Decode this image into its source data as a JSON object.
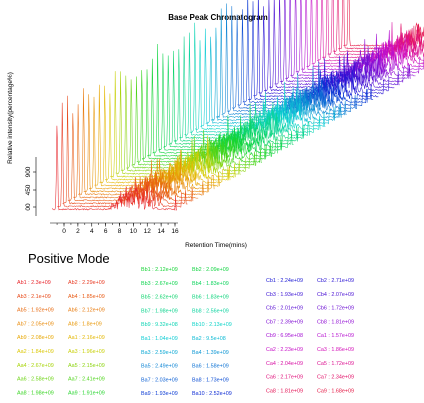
{
  "chart_data": {
    "type": "line",
    "title": "Base Peak Chromatogram",
    "xlabel": "Retention Time(mins)",
    "ylabel": "Relative intensity(percentage%)",
    "x_ticks": [
      "0",
      "2",
      "4",
      "6",
      "8",
      "10",
      "12",
      "14",
      "16"
    ],
    "xlim": [
      0,
      16
    ],
    "y_ticks": [
      "00",
      "450",
      "900"
    ],
    "mode_label": "Positive Mode",
    "series": [
      {
        "name": "Ab1",
        "value": "2.3e+09",
        "color": "#e8262c"
      },
      {
        "name": "Ab2",
        "value": "2.29e+09",
        "color": "#e83a22"
      },
      {
        "name": "Ab3",
        "value": "2.1e+09",
        "color": "#e84a1a"
      },
      {
        "name": "Ab4",
        "value": "1.85e+09",
        "color": "#e85a14"
      },
      {
        "name": "Ab5",
        "value": "1.92e+09",
        "color": "#e86a10"
      },
      {
        "name": "Ab6",
        "value": "2.12e+09",
        "color": "#e87a0c"
      },
      {
        "name": "Ab7",
        "value": "2.05e+09",
        "color": "#e88a0a"
      },
      {
        "name": "Ab8",
        "value": "1.8e+09",
        "color": "#e89808"
      },
      {
        "name": "Ab9",
        "value": "2.08e+09",
        "color": "#e8a806"
      },
      {
        "name": "Aa1",
        "value": "2.16e+09",
        "color": "#e4b806"
      },
      {
        "name": "Aa2",
        "value": "1.84e+09",
        "color": "#dcc808"
      },
      {
        "name": "Aa3",
        "value": "1.96e+09",
        "color": "#c8d008"
      },
      {
        "name": "Aa4",
        "value": "2.67e+09",
        "color": "#a8d40a"
      },
      {
        "name": "Aa5",
        "value": "2.15e+09",
        "color": "#8cd40e"
      },
      {
        "name": "Aa6",
        "value": "2.58e+09",
        "color": "#6cd414"
      },
      {
        "name": "Aa7",
        "value": "2.41e+09",
        "color": "#4ed41a"
      },
      {
        "name": "Aa8",
        "value": "1.98e+09",
        "color": "#36d420"
      },
      {
        "name": "Aa9",
        "value": "1.91e+09",
        "color": "#22d42a"
      },
      {
        "name": "Bb1",
        "value": "2.12e+09",
        "color": "#14d434"
      },
      {
        "name": "Bb2",
        "value": "2.09e+09",
        "color": "#10d440"
      },
      {
        "name": "Bb3",
        "value": "2.67e+09",
        "color": "#0ed44e"
      },
      {
        "name": "Bb4",
        "value": "1.83e+09",
        "color": "#0cd45c"
      },
      {
        "name": "Bb5",
        "value": "2.62e+09",
        "color": "#0cd46c"
      },
      {
        "name": "Bb6",
        "value": "1.83e+09",
        "color": "#0cd47c"
      },
      {
        "name": "Bb7",
        "value": "1.98e+09",
        "color": "#0cd48e"
      },
      {
        "name": "Bb8",
        "value": "2.56e+09",
        "color": "#0cd4a0"
      },
      {
        "name": "Bb9",
        "value": "9.32e+08",
        "color": "#0cd4b4"
      },
      {
        "name": "Bb10",
        "value": "2.13e+09",
        "color": "#0cd4c8"
      },
      {
        "name": "Ba1",
        "value": "1.04e+09",
        "color": "#0cccd4"
      },
      {
        "name": "Ba2",
        "value": "9.5e+08",
        "color": "#0cbad4"
      },
      {
        "name": "Ba3",
        "value": "2.59e+09",
        "color": "#0ca8d4"
      },
      {
        "name": "Ba4",
        "value": "1.39e+09",
        "color": "#0c96d4"
      },
      {
        "name": "Ba5",
        "value": "2.49e+09",
        "color": "#0c84d4"
      },
      {
        "name": "Ba6",
        "value": "1.58e+09",
        "color": "#0c72d4"
      },
      {
        "name": "Ba7",
        "value": "2.03e+09",
        "color": "#0c60d4"
      },
      {
        "name": "Ba8",
        "value": "1.73e+09",
        "color": "#0c4ed4"
      },
      {
        "name": "Ba9",
        "value": "1.93e+09",
        "color": "#0c3cd4"
      },
      {
        "name": "Ba10",
        "value": "2.52e+09",
        "color": "#0c2ad4"
      },
      {
        "name": "Cb1",
        "value": "2.24e+09",
        "color": "#1a18d4"
      },
      {
        "name": "Cb2",
        "value": "2.71e+09",
        "color": "#2a14d4"
      },
      {
        "name": "Cb3",
        "value": "1.93e+09",
        "color": "#3a12d4"
      },
      {
        "name": "Cb4",
        "value": "2.07e+09",
        "color": "#4a10d4"
      },
      {
        "name": "Cb5",
        "value": "2.01e+09",
        "color": "#5c10d4"
      },
      {
        "name": "Cb6",
        "value": "1.72e+09",
        "color": "#6e10d4"
      },
      {
        "name": "Cb7",
        "value": "2.39e+09",
        "color": "#8010d4"
      },
      {
        "name": "Cb8",
        "value": "1.81e+09",
        "color": "#9210d4"
      },
      {
        "name": "Cb9",
        "value": "6.95e+08",
        "color": "#a410d4"
      },
      {
        "name": "Ca1",
        "value": "1.57e+09",
        "color": "#b610d0"
      },
      {
        "name": "Ca2",
        "value": "2.23e+09",
        "color": "#c810c8"
      },
      {
        "name": "Ca3",
        "value": "1.86e+09",
        "color": "#d410b8"
      },
      {
        "name": "Ca4",
        "value": "2.04e+09",
        "color": "#d810a4"
      },
      {
        "name": "Ca5",
        "value": "1.72e+09",
        "color": "#dc1090"
      },
      {
        "name": "Ca6",
        "value": "2.17e+09",
        "color": "#e0107c"
      },
      {
        "name": "Ca7",
        "value": "2.34e+09",
        "color": "#e21068"
      },
      {
        "name": "Ca8",
        "value": "1.81e+09",
        "color": "#e41456"
      },
      {
        "name": "Ca9",
        "value": "1.68e+09",
        "color": "#e41844"
      }
    ]
  }
}
